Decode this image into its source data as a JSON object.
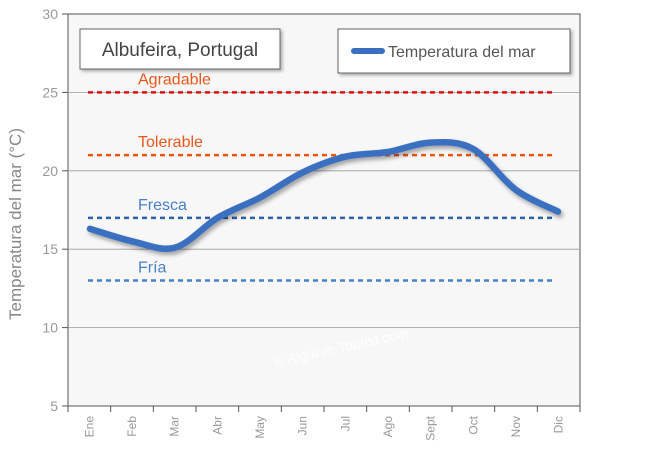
{
  "chart_data": {
    "type": "line",
    "title": "Albufeira, Portugal",
    "ylabel": "Temperatura del mar (°C)",
    "xlabel": "",
    "ylim": [
      5,
      30
    ],
    "yticks": [
      5,
      10,
      15,
      20,
      25,
      30
    ],
    "grid": true,
    "legend_position": "top-right",
    "categories": [
      "Ene",
      "Feb",
      "Mar",
      "Abr",
      "May",
      "Jun",
      "Jul",
      "Ago",
      "Sept",
      "Oct",
      "Nov",
      "Dic"
    ],
    "series": [
      {
        "name": "Temperatura del mar",
        "color": "#3a6fc0",
        "values": [
          16.3,
          15.5,
          15.1,
          17.0,
          18.3,
          19.9,
          20.9,
          21.2,
          21.8,
          21.4,
          18.8,
          17.4
        ]
      }
    ],
    "reference_lines": [
      {
        "label": "Agradable",
        "value": 25,
        "color": "#dd1111",
        "label_color": "#e8581c"
      },
      {
        "label": "Tolerable",
        "value": 21,
        "color": "#ee5511",
        "label_color": "#e8581c"
      },
      {
        "label": "Fresca",
        "value": 17,
        "color": "#2f5fa8",
        "label_color": "#4a80c8"
      },
      {
        "label": "Fría",
        "value": 13,
        "color": "#4a80c8",
        "label_color": "#4a80c8"
      }
    ],
    "watermark": "© Algarve-Tourist.com"
  }
}
